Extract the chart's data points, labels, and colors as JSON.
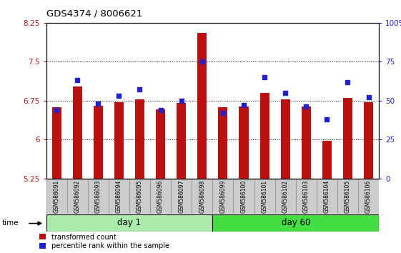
{
  "title": "GDS4374 / 8006621",
  "samples": [
    "GSM586091",
    "GSM586092",
    "GSM586093",
    "GSM586094",
    "GSM586095",
    "GSM586096",
    "GSM586097",
    "GSM586098",
    "GSM586099",
    "GSM586100",
    "GSM586101",
    "GSM586102",
    "GSM586103",
    "GSM586104",
    "GSM586105",
    "GSM586106"
  ],
  "transformed_counts": [
    6.62,
    7.02,
    6.65,
    6.72,
    6.77,
    6.58,
    6.7,
    8.05,
    6.62,
    6.63,
    6.9,
    6.77,
    6.63,
    5.98,
    6.8,
    6.72
  ],
  "percentile_ranks": [
    44,
    63,
    48,
    53,
    57,
    44,
    50,
    75,
    42,
    47,
    65,
    55,
    46,
    38,
    62,
    52
  ],
  "day1_count": 8,
  "day60_count": 8,
  "ylim_left": [
    5.25,
    8.25
  ],
  "ylim_right": [
    0,
    100
  ],
  "yticks_left": [
    5.25,
    6.0,
    6.75,
    7.5,
    8.25
  ],
  "yticks_right": [
    0,
    25,
    50,
    75,
    100
  ],
  "ytick_labels_left": [
    "5.25",
    "6",
    "6.75",
    "7.5",
    "8.25"
  ],
  "ytick_labels_right": [
    "0",
    "25",
    "50",
    "75",
    "100%"
  ],
  "bar_color": "#bb1111",
  "marker_color": "#2222cc",
  "day1_color": "#aaeaaa",
  "day60_color": "#44dd44",
  "grid_color": "#000000",
  "bg_color": "#ffffff",
  "tick_bg_color": "#cccccc",
  "bar_width": 0.45
}
